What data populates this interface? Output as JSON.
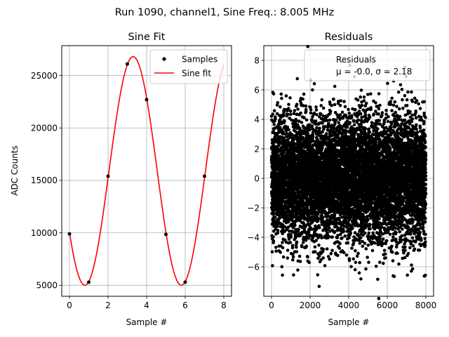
{
  "suptitle": "Run 1090, channel1, Sine Freq.: 8.005 MHz",
  "chart_data": [
    {
      "type": "scatter",
      "title": "Sine Fit",
      "xlabel": "Sample #",
      "ylabel": "ADC Counts",
      "xlim": [
        -0.4,
        8.4
      ],
      "ylim": [
        3950,
        27850
      ],
      "xticks": [
        0,
        2,
        4,
        6,
        8
      ],
      "yticks": [
        5000,
        10000,
        15000,
        20000,
        25000
      ],
      "grid": true,
      "legend_position": "top-right",
      "series": [
        {
          "name": "Samples",
          "style": "points",
          "color": "#000000",
          "x": [
            0,
            1,
            2,
            3,
            4,
            5,
            6,
            7
          ],
          "y": [
            9900,
            5300,
            15400,
            26100,
            22700,
            9850,
            5300,
            15400
          ]
        },
        {
          "name": "Sine fit",
          "style": "line",
          "color": "#ff0000",
          "function": {
            "offset": 15900,
            "amplitude": 10900,
            "phase_sample": 3.3,
            "period_samples": 5
          },
          "x_range": [
            0,
            8
          ]
        }
      ]
    },
    {
      "type": "scatter",
      "title": "Residuals",
      "xlabel": "Sample #",
      "ylabel": "",
      "xlim": [
        -400,
        8400
      ],
      "ylim": [
        -8,
        9
      ],
      "xticks": [
        0,
        2000,
        4000,
        6000,
        8000
      ],
      "yticks": [
        -6,
        -4,
        -2,
        0,
        2,
        4,
        6,
        8
      ],
      "grid": true,
      "legend_position": "top-right",
      "legend": {
        "label": "Residuals",
        "stats": "μ = -0.0, σ = 2.18"
      },
      "series": [
        {
          "name": "Residuals",
          "style": "points",
          "color": "#000000",
          "n_points": 8000,
          "mean": 0.0,
          "std": 2.18,
          "x_range": [
            0,
            8000
          ]
        }
      ]
    }
  ]
}
